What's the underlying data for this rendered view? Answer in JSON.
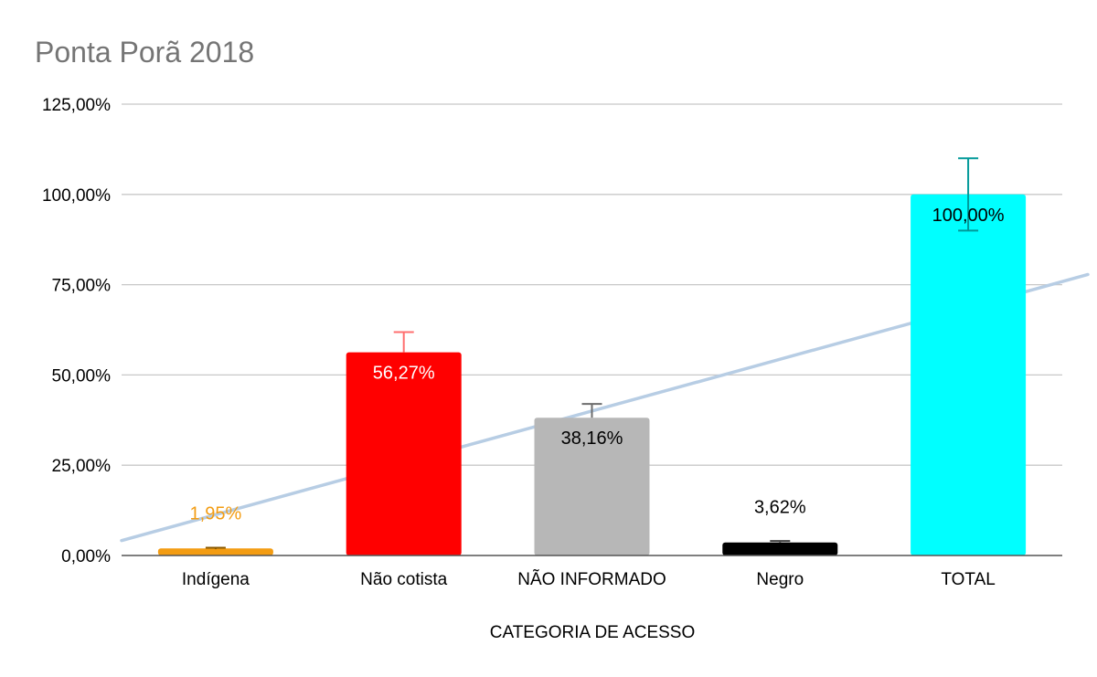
{
  "chart_data": {
    "type": "bar",
    "title": "Ponta Porã 2018",
    "xlabel": "CATEGORIA DE ACESSO",
    "ylabel": "",
    "ylim": [
      0,
      125
    ],
    "yticks": [
      0,
      25,
      50,
      75,
      100,
      125
    ],
    "ytick_labels": [
      "0,00%",
      "25,00%",
      "50,00%",
      "75,00%",
      "100,00%",
      "125,00%"
    ],
    "grid": true,
    "legend": "none",
    "categories": [
      "Indígena",
      "Não cotista",
      "NÃO INFORMADO",
      "Negro",
      "TOTAL"
    ],
    "values": [
      1.95,
      56.27,
      38.16,
      3.62,
      100.0
    ],
    "data_labels": [
      "1,95%",
      "56,27%",
      "38,16%",
      "3,62%",
      "100,00%"
    ],
    "error_bars_plus": [
      0.2,
      5.6,
      3.8,
      0.4,
      10.0
    ],
    "error_bars_minus": [
      0.2,
      0,
      0,
      0,
      10.0
    ],
    "bar_colors": [
      "#f39c12",
      "#ff0000",
      "#b7b7b7",
      "#000000",
      "#00ffff"
    ],
    "error_bar_colors": [
      "#8b5a00",
      "#ff6f6f",
      "#6d6d6d",
      "#444444",
      "#009999"
    ],
    "label_colors": [
      "#f39c12",
      "#ffffff",
      "#000000",
      "#000000",
      "#000000"
    ],
    "label_positions": [
      "above",
      "inside",
      "inside",
      "above",
      "inside"
    ],
    "trendline": {
      "type": "linear",
      "color": "#b7cde4"
    }
  }
}
